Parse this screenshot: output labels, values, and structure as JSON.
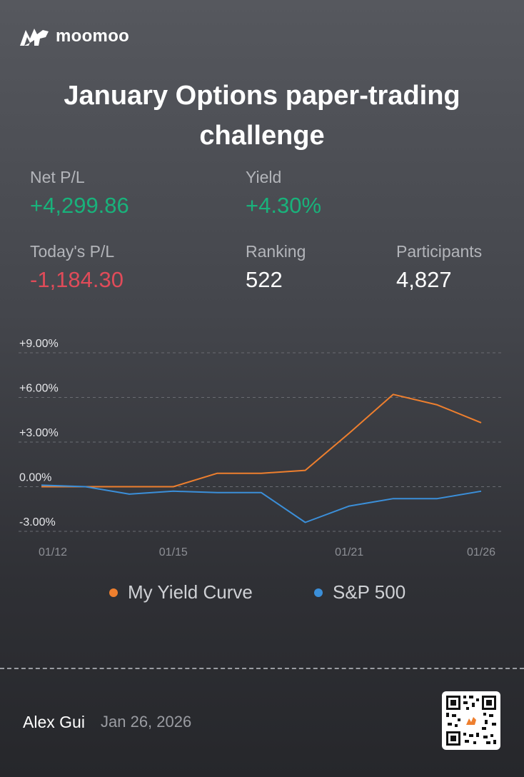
{
  "brand": {
    "name": "moomoo",
    "logo_icon": "bull-logo-icon"
  },
  "title": "January Options paper-trading challenge",
  "stats": {
    "net_pl": {
      "label": "Net P/L",
      "value": "+4,299.86"
    },
    "yield": {
      "label": "Yield",
      "value": "+4.30%"
    },
    "todays_pl": {
      "label": "Today's P/L",
      "value": "-1,184.30"
    },
    "ranking": {
      "label": "Ranking",
      "value": "522"
    },
    "participants": {
      "label": "Participants",
      "value": "4,827"
    }
  },
  "colors": {
    "positive": "#19b27b",
    "negative": "#e04b59",
    "my_yield": "#ee7f2e",
    "sp500": "#3b8fd9"
  },
  "chart_data": {
    "type": "line",
    "y_ticks": [
      "+9.00%",
      "+6.00%",
      "+3.00%",
      "0.00%",
      "-3.00%"
    ],
    "ylim": [
      -3,
      9
    ],
    "x_tick_labels": [
      "01/12",
      "01/15",
      "01/21",
      "01/26"
    ],
    "x_tick_positions": [
      0,
      3,
      7,
      10
    ],
    "x": [
      0,
      1,
      2,
      3,
      4,
      5,
      6,
      7,
      8,
      9,
      10
    ],
    "series": [
      {
        "name": "My Yield Curve",
        "color": "#ee7f2e",
        "values": [
          0.0,
          0.0,
          0.0,
          0.0,
          0.9,
          0.9,
          1.1,
          3.6,
          6.2,
          5.5,
          4.3
        ]
      },
      {
        "name": "S&P 500",
        "color": "#3b8fd9",
        "values": [
          0.1,
          0.0,
          -0.5,
          -0.3,
          -0.4,
          -0.4,
          -2.4,
          -1.3,
          -0.8,
          -0.8,
          -0.3
        ]
      }
    ],
    "grid": true
  },
  "legend": {
    "my_yield": "My Yield Curve",
    "sp500": "S&P 500"
  },
  "footer": {
    "name": "Alex Gui",
    "date": "Jan 26, 2026",
    "qr_icon": "qr-code-icon"
  }
}
